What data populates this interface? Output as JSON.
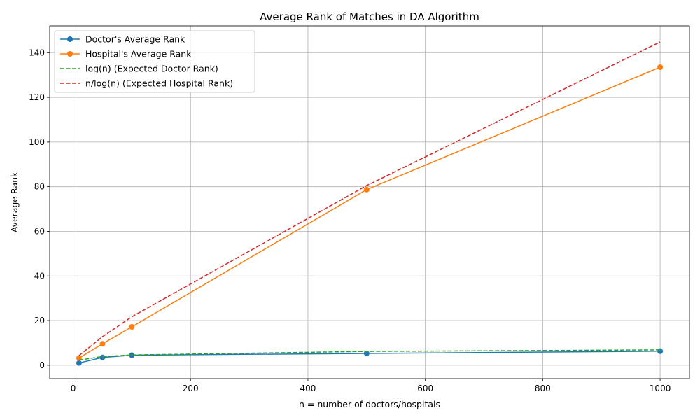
{
  "chart_data": {
    "type": "line",
    "title": "Average Rank of Matches in DA Algorithm",
    "xlabel": "n = number of doctors/hospitals",
    "ylabel": "Average Rank",
    "xlim": [
      -40,
      1050
    ],
    "ylim": [
      -6,
      152
    ],
    "x_ticks": [
      0,
      200,
      400,
      600,
      800,
      1000
    ],
    "y_ticks": [
      0,
      20,
      40,
      60,
      80,
      100,
      120,
      140
    ],
    "grid": true,
    "legend_position": "top-left",
    "x": [
      10,
      50,
      100,
      500,
      1000
    ],
    "series": [
      {
        "name": "Doctor's Average Rank",
        "values": [
          1.0,
          3.5,
          4.5,
          5.3,
          6.3
        ],
        "color": "#1f77b4",
        "style": "solid",
        "marker": "circle"
      },
      {
        "name": "Hospital's Average Rank",
        "values": [
          3.2,
          9.6,
          17.2,
          78.7,
          133.5
        ],
        "color": "#ff7f0e",
        "style": "solid",
        "marker": "circle"
      },
      {
        "name": "log(n) (Expected Doctor Rank)",
        "values": [
          2.3,
          3.9,
          4.6,
          6.2,
          6.9
        ],
        "color": "#2ca02c",
        "style": "dashed",
        "marker": "none"
      },
      {
        "name": "n/log(n) (Expected Hospital Rank)",
        "values": [
          4.3,
          12.8,
          21.7,
          80.5,
          144.8
        ],
        "color": "#d62728",
        "style": "dashed",
        "marker": "none"
      }
    ]
  }
}
